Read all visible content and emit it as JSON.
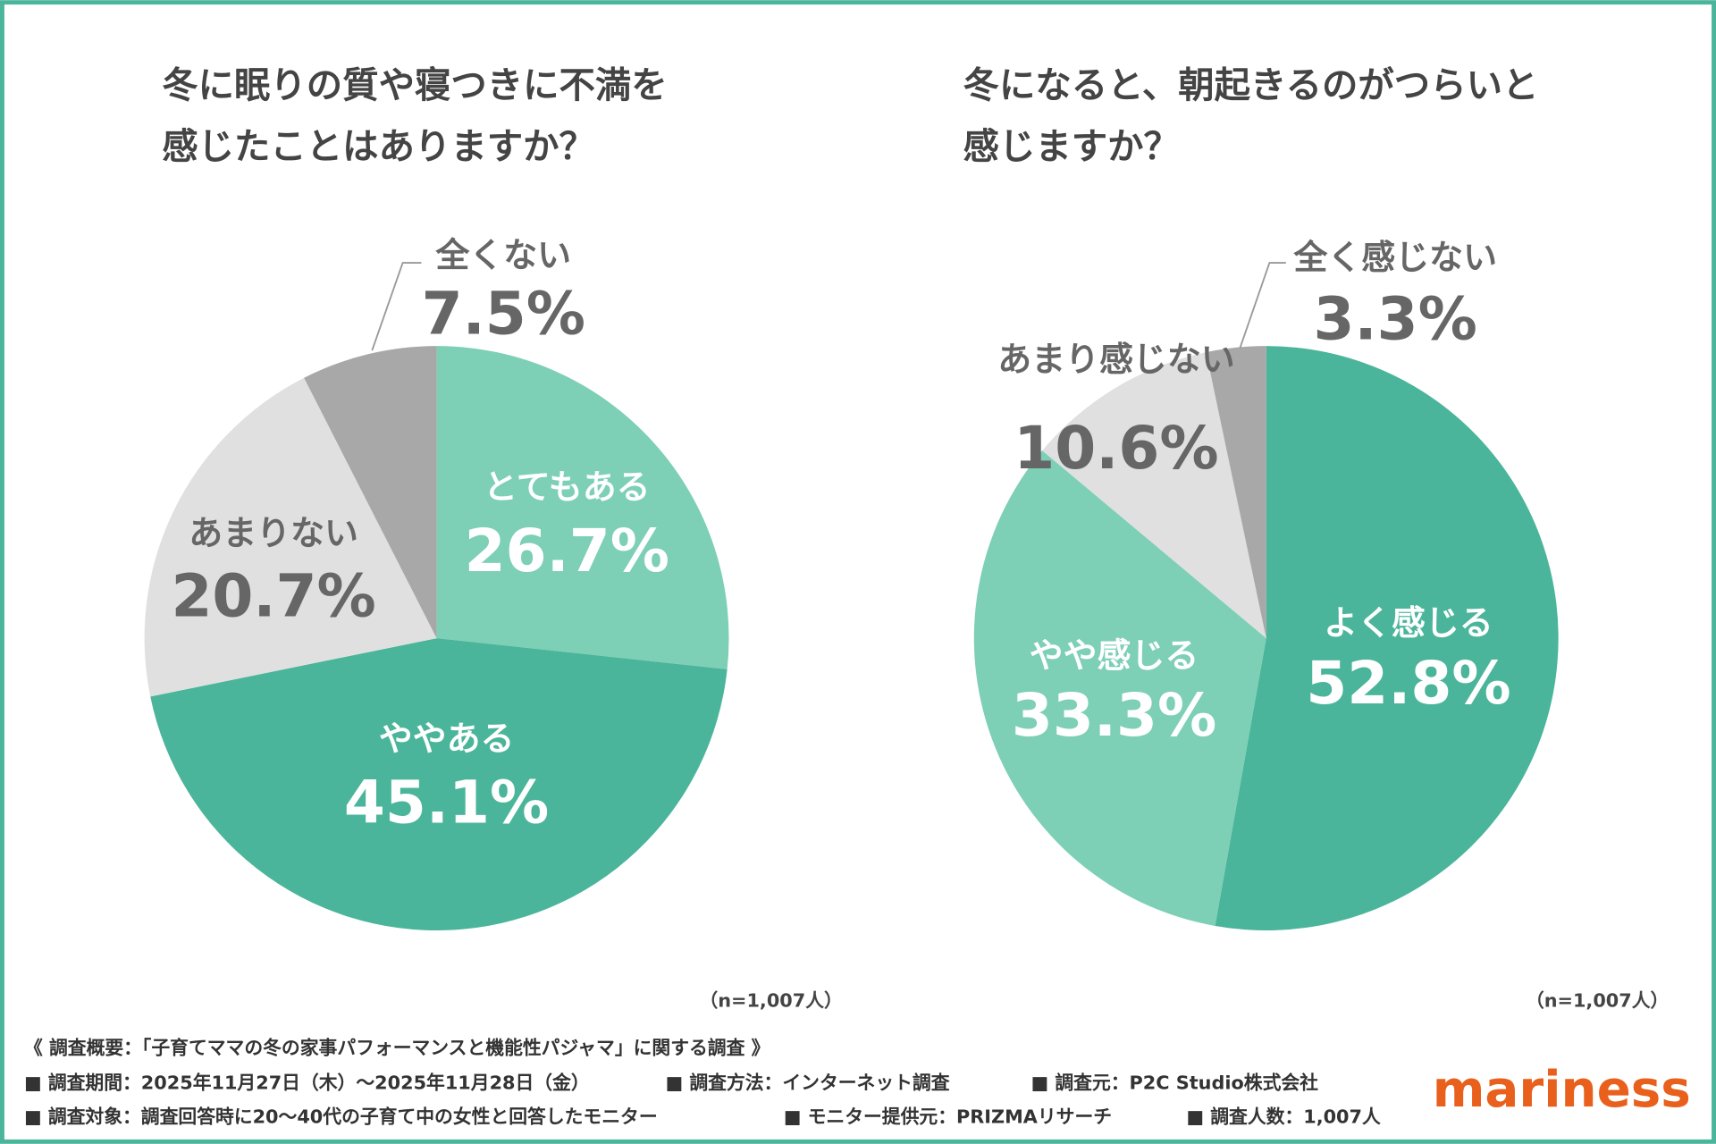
{
  "chart_data": [
    {
      "type": "pie",
      "title": [
        "冬に眠りの質や寝つきに不満を",
        "感じたことはありますか？"
      ],
      "categories": [
        "とてもある",
        "ややある",
        "あまりない",
        "全くない"
      ],
      "values": [
        26.7,
        45.1,
        20.7,
        7.5
      ],
      "value_labels": [
        "26.7%",
        "45.1%",
        "20.7%",
        "7.5%"
      ],
      "colors": [
        "#7dcfb6",
        "#4ab59a",
        "#e0e0e0",
        "#a8a8a8"
      ],
      "note": "（n=1,007人）"
    },
    {
      "type": "pie",
      "title": [
        "冬になると、朝起きるのがつらいと",
        "感じますか？"
      ],
      "categories": [
        "よく感じる",
        "やや感じる",
        "あまり感じない",
        "全く感じない"
      ],
      "values": [
        52.8,
        33.3,
        10.6,
        3.3
      ],
      "value_labels": [
        "52.8%",
        "33.3%",
        "10.6%",
        "3.3%"
      ],
      "colors": [
        "#4ab59a",
        "#7dcfb6",
        "#e0e0e0",
        "#a8a8a8"
      ],
      "note": "（n=1,007人）"
    }
  ],
  "footer": {
    "summary": "《 調査概要：「子育てママの冬の家事パフォーマンスと機能性パジャマ」に関する調査 》",
    "items": [
      [
        "■ 調査期間：2025年11月27日（木）～2025年11月28日（金）",
        "■ 調査方法：インターネット調査",
        "■ 調査元：P2C Studio株式会社"
      ],
      [
        "■ 調査対象：調査回答時に20～40代の子育て中の女性と回答したモニター",
        "■ モニター提供元：PRIZMAリサーチ",
        "■ 調査人数：1,007人"
      ]
    ],
    "logo": "mariness"
  }
}
